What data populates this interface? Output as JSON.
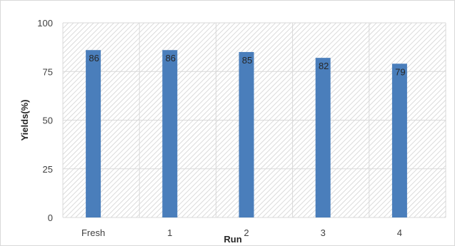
{
  "chart_data": {
    "type": "bar",
    "categories": [
      "Fresh",
      "1",
      "2",
      "3",
      "4"
    ],
    "values": [
      86,
      86,
      85,
      82,
      79
    ],
    "data_labels": [
      "86",
      "86",
      "85",
      "82",
      "79"
    ],
    "title": "",
    "xlabel": "Run",
    "ylabel": "Yields(%)",
    "ylim": [
      0,
      100
    ],
    "yticks": [
      "0",
      "25",
      "50",
      "75",
      "100"
    ],
    "grid": true,
    "legend": "none",
    "bar_color": "#4a7ebb",
    "plot_pattern": "diagonal hatch"
  }
}
